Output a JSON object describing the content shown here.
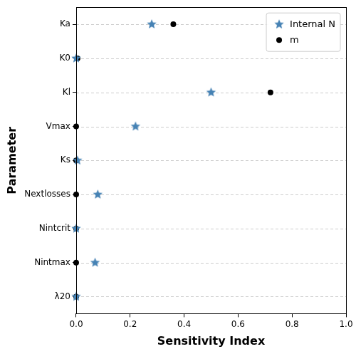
{
  "chart_data": {
    "type": "scatter",
    "orientation": "horizontal",
    "x_label": "Sensitivity Index",
    "y_label": "Parameter",
    "categories": [
      "Ka",
      "K0",
      "Kl",
      "Vmax",
      "Ks",
      "Nextlosses",
      "Nintcrit",
      "Nintmax",
      "λ20"
    ],
    "series": [
      {
        "name": "Internal N",
        "color": "#4682b4",
        "marker": "star",
        "values": [
          0.28,
          0.0,
          0.5,
          0.22,
          0.005,
          0.08,
          0.0,
          0.07,
          0.0
        ]
      },
      {
        "name": "m",
        "color": "#000000",
        "marker": "circle",
        "values": [
          0.36,
          0.005,
          0.72,
          0.0,
          0.0,
          0.0,
          0.0,
          0.0,
          0.0
        ]
      }
    ],
    "xlim": [
      0,
      1
    ],
    "xticks": [
      {
        "value": 0,
        "label": "0.0"
      },
      0.2,
      0.4,
      0.6,
      0.8,
      {
        "value": 1,
        "label": "1.0"
      }
    ],
    "grid": true,
    "legend": "upper right"
  }
}
